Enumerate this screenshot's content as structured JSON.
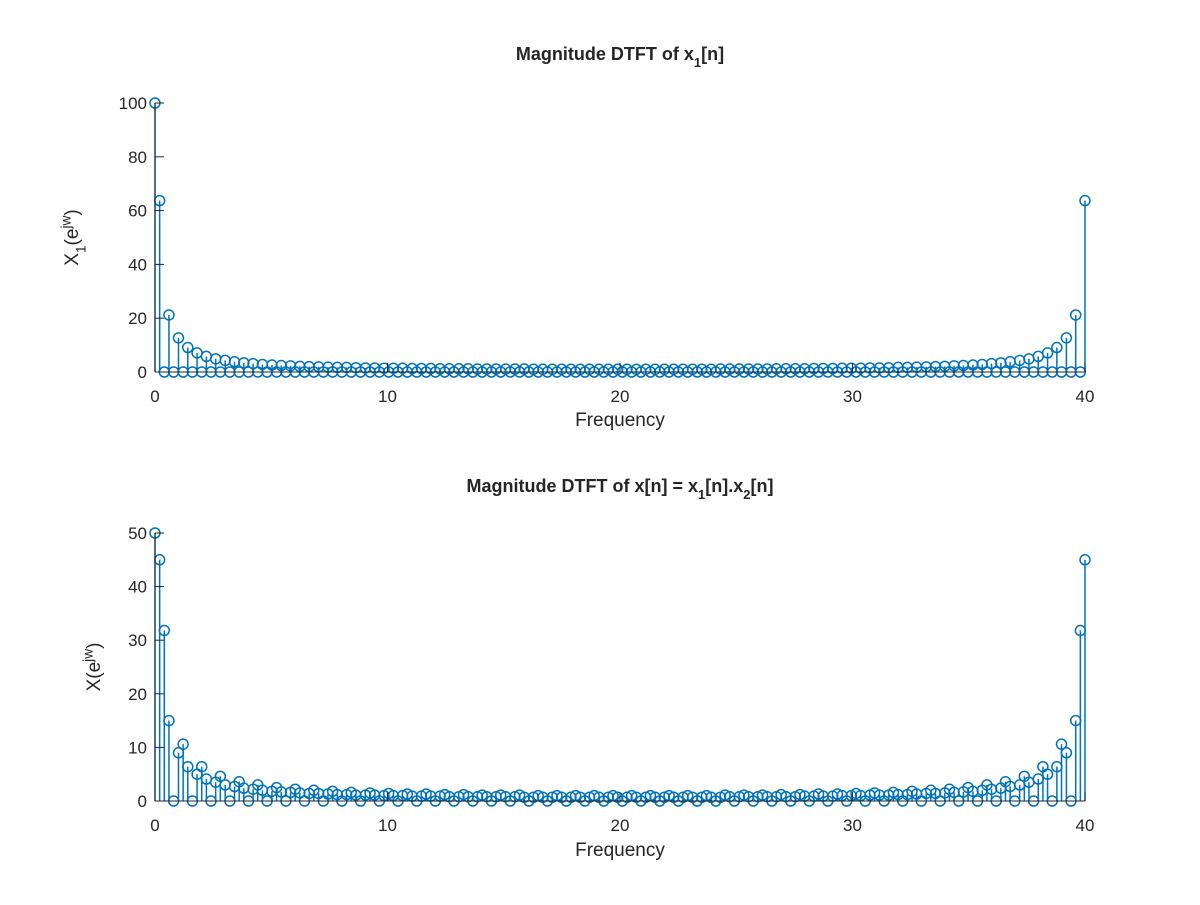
{
  "chart_data": [
    {
      "type": "stem",
      "title": "Magnitude DTFT of x_1[n]",
      "x_label": "Frequency",
      "y_label": "X_1(e^{jw})",
      "color": "#0072bd",
      "grid": false,
      "xlim": [
        0,
        40
      ],
      "xticks": [
        0,
        10,
        20,
        30,
        40
      ],
      "ylim": [
        0,
        100
      ],
      "yticks": [
        0,
        20,
        40,
        60,
        80,
        100
      ],
      "x": [
        0,
        0.2,
        0.4,
        0.6,
        0.8,
        1.01,
        1.21,
        1.41,
        1.61,
        1.81,
        2.01,
        2.21,
        2.41,
        2.61,
        2.81,
        3.02,
        3.22,
        3.42,
        3.62,
        3.82,
        4.02,
        4.22,
        4.42,
        4.62,
        4.82,
        5.03,
        5.23,
        5.43,
        5.63,
        5.83,
        6.03,
        6.23,
        6.43,
        6.63,
        6.83,
        7.04,
        7.24,
        7.44,
        7.64,
        7.84,
        8.04,
        8.24,
        8.44,
        8.64,
        8.84,
        9.05,
        9.25,
        9.45,
        9.65,
        9.85,
        10.05,
        10.25,
        10.45,
        10.65,
        10.85,
        11.06,
        11.26,
        11.46,
        11.66,
        11.86,
        12.06,
        12.26,
        12.46,
        12.66,
        12.86,
        13.07,
        13.27,
        13.47,
        13.67,
        13.87,
        14.07,
        14.27,
        14.47,
        14.67,
        14.87,
        15.08,
        15.28,
        15.48,
        15.68,
        15.88,
        16.08,
        16.28,
        16.48,
        16.68,
        16.88,
        17.09,
        17.29,
        17.49,
        17.69,
        17.89,
        18.09,
        18.29,
        18.49,
        18.69,
        18.89,
        19.1,
        19.3,
        19.5,
        19.7,
        19.9,
        20.1,
        20.3,
        20.5,
        20.7,
        20.9,
        21.11,
        21.31,
        21.51,
        21.71,
        21.91,
        22.11,
        22.31,
        22.51,
        22.71,
        22.91,
        23.12,
        23.32,
        23.52,
        23.72,
        23.92,
        24.12,
        24.32,
        24.52,
        24.72,
        24.92,
        25.13,
        25.33,
        25.53,
        25.73,
        25.93,
        26.13,
        26.33,
        26.53,
        26.73,
        26.93,
        27.14,
        27.34,
        27.54,
        27.74,
        27.94,
        28.14,
        28.34,
        28.54,
        28.74,
        28.94,
        29.15,
        29.35,
        29.55,
        29.75,
        29.95,
        30.15,
        30.35,
        30.55,
        30.75,
        30.95,
        31.16,
        31.36,
        31.56,
        31.76,
        31.96,
        32.16,
        32.36,
        32.56,
        32.76,
        32.96,
        33.17,
        33.37,
        33.57,
        33.77,
        33.97,
        34.17,
        34.37,
        34.57,
        34.77,
        34.97,
        35.18,
        35.38,
        35.58,
        35.78,
        35.98,
        36.18,
        36.38,
        36.58,
        36.78,
        36.98,
        37.19,
        37.39,
        37.59,
        37.79,
        37.99,
        38.19,
        38.39,
        38.59,
        38.79,
        38.99,
        39.2,
        39.4,
        39.6,
        39.8,
        40
      ],
      "values": [
        100,
        63.7,
        0,
        21.2,
        0,
        12.7,
        0,
        9.1,
        0,
        7.1,
        0,
        5.8,
        0,
        4.9,
        0,
        4.3,
        0,
        3.8,
        0,
        3.4,
        0,
        3.1,
        0,
        2.8,
        0,
        2.6,
        0,
        2.4,
        0,
        2.3,
        0,
        2.1,
        0,
        2,
        0,
        1.9,
        0,
        1.8,
        0,
        1.7,
        0,
        1.7,
        0,
        1.6,
        0,
        1.5,
        0,
        1.5,
        0,
        1.4,
        0,
        1.4,
        0,
        1.4,
        0,
        1.3,
        0,
        1.3,
        0,
        1.3,
        0,
        1.2,
        0,
        1.2,
        0,
        1.2,
        0,
        1.2,
        0,
        1.1,
        0,
        1.1,
        0,
        1.1,
        0,
        1.1,
        0,
        1.1,
        0,
        1.1,
        0,
        1,
        0,
        1,
        0,
        1,
        0,
        1,
        0,
        1,
        0,
        1,
        0,
        1,
        0,
        1,
        0,
        1,
        0,
        1,
        0,
        1,
        0,
        1,
        0,
        1,
        0,
        1,
        0,
        1,
        0,
        1,
        0,
        1,
        0,
        1,
        0,
        1,
        0,
        1,
        0,
        1.1,
        0,
        1.1,
        0,
        1.1,
        0,
        1.1,
        0,
        1.1,
        0,
        1.1,
        0,
        1.2,
        0,
        1.2,
        0,
        1.2,
        0,
        1.2,
        0,
        1.3,
        0,
        1.3,
        0,
        1.3,
        0,
        1.4,
        0,
        1.4,
        0,
        1.4,
        0,
        1.5,
        0,
        1.5,
        0,
        1.6,
        0,
        1.7,
        0,
        1.7,
        0,
        1.8,
        0,
        1.9,
        0,
        2,
        0,
        2.1,
        0,
        2.3,
        0,
        2.4,
        0,
        2.6,
        0,
        2.8,
        0,
        3.1,
        0,
        3.4,
        0,
        3.8,
        0,
        4.3,
        0,
        4.9,
        0,
        5.8,
        0,
        7.1,
        0,
        9.1,
        0,
        12.7,
        0,
        21.2,
        0,
        63.7
      ]
    },
    {
      "type": "stem",
      "title": "Magnitude DTFT of x[n] = x_1[n].x_2[n]",
      "x_label": "Frequency",
      "y_label": "X(e^{jw})",
      "color": "#0072bd",
      "grid": false,
      "xlim": [
        0,
        40
      ],
      "xticks": [
        0,
        10,
        20,
        30,
        40
      ],
      "ylim": [
        0,
        50
      ],
      "yticks": [
        0,
        10,
        20,
        30,
        40,
        50
      ],
      "x": [
        0,
        0.2,
        0.4,
        0.6,
        0.8,
        1.01,
        1.21,
        1.41,
        1.61,
        1.81,
        2.01,
        2.21,
        2.41,
        2.61,
        2.81,
        3.02,
        3.22,
        3.42,
        3.62,
        3.82,
        4.02,
        4.22,
        4.42,
        4.62,
        4.82,
        5.03,
        5.23,
        5.43,
        5.63,
        5.83,
        6.03,
        6.23,
        6.43,
        6.63,
        6.83,
        7.04,
        7.24,
        7.44,
        7.64,
        7.84,
        8.04,
        8.24,
        8.44,
        8.64,
        8.84,
        9.05,
        9.25,
        9.45,
        9.65,
        9.85,
        10.05,
        10.25,
        10.45,
        10.65,
        10.85,
        11.06,
        11.26,
        11.46,
        11.66,
        11.86,
        12.06,
        12.26,
        12.46,
        12.66,
        12.86,
        13.07,
        13.27,
        13.47,
        13.67,
        13.87,
        14.07,
        14.27,
        14.47,
        14.67,
        14.87,
        15.08,
        15.28,
        15.48,
        15.68,
        15.88,
        16.08,
        16.28,
        16.48,
        16.68,
        16.88,
        17.09,
        17.29,
        17.49,
        17.69,
        17.89,
        18.09,
        18.29,
        18.49,
        18.69,
        18.89,
        19.1,
        19.3,
        19.5,
        19.7,
        19.9,
        20.1,
        20.3,
        20.5,
        20.7,
        20.9,
        21.11,
        21.31,
        21.51,
        21.71,
        21.91,
        22.11,
        22.31,
        22.51,
        22.71,
        22.91,
        23.12,
        23.32,
        23.52,
        23.72,
        23.92,
        24.12,
        24.32,
        24.52,
        24.72,
        24.92,
        25.13,
        25.33,
        25.53,
        25.73,
        25.93,
        26.13,
        26.33,
        26.53,
        26.73,
        26.93,
        27.14,
        27.34,
        27.54,
        27.74,
        27.94,
        28.14,
        28.34,
        28.54,
        28.74,
        28.94,
        29.15,
        29.35,
        29.55,
        29.75,
        29.95,
        30.15,
        30.35,
        30.55,
        30.75,
        30.95,
        31.16,
        31.36,
        31.56,
        31.76,
        31.96,
        32.16,
        32.36,
        32.56,
        32.76,
        32.96,
        33.17,
        33.37,
        33.57,
        33.77,
        33.97,
        34.17,
        34.37,
        34.57,
        34.77,
        34.97,
        35.18,
        35.38,
        35.58,
        35.78,
        35.98,
        36.18,
        36.38,
        36.58,
        36.78,
        36.98,
        37.19,
        37.39,
        37.59,
        37.79,
        37.99,
        38.19,
        38.39,
        38.59,
        38.79,
        38.99,
        39.2,
        39.4,
        39.6,
        39.8,
        40
      ],
      "values": [
        50,
        45,
        31.8,
        15,
        0,
        9,
        10.6,
        6.4,
        0,
        5,
        6.4,
        4.1,
        0,
        3.5,
        4.6,
        3,
        0,
        2.7,
        3.6,
        2.4,
        0,
        2.2,
        3,
        2,
        0,
        1.8,
        2.5,
        1.7,
        0,
        1.6,
        2.2,
        1.5,
        0,
        1.4,
        2,
        1.4,
        0,
        1.3,
        1.8,
        1.2,
        0,
        1.2,
        1.6,
        1.1,
        0,
        1.1,
        1.5,
        1.1,
        0,
        1,
        1.4,
        1,
        0,
        1,
        1.3,
        0.9,
        0,
        0.9,
        1.3,
        0.9,
        0,
        0.9,
        1.2,
        0.8,
        0,
        0.8,
        1.2,
        0.8,
        0,
        0.8,
        1.1,
        0.8,
        0,
        0.8,
        1.1,
        0.8,
        0,
        0.8,
        1.1,
        0.7,
        0,
        0.7,
        1,
        0.7,
        0,
        0.7,
        1,
        0.7,
        0,
        0.7,
        1,
        0.7,
        0,
        0.7,
        1,
        0.7,
        0,
        0.7,
        1,
        0.7,
        0,
        0.7,
        1,
        0.7,
        0,
        0.7,
        1,
        0.7,
        0,
        0.7,
        1,
        0.7,
        0,
        0.7,
        1,
        0.7,
        0,
        0.7,
        1,
        0.7,
        0,
        0.7,
        1.1,
        0.8,
        0,
        0.8,
        1.1,
        0.8,
        0,
        0.8,
        1.1,
        0.8,
        0,
        0.8,
        1.2,
        0.8,
        0,
        0.8,
        1.2,
        0.9,
        0,
        0.9,
        1.3,
        0.9,
        0,
        0.9,
        1.3,
        1,
        0,
        1,
        1.4,
        1,
        0,
        1.1,
        1.5,
        1.1,
        0,
        1.1,
        1.6,
        1.2,
        0,
        1.2,
        1.8,
        1.3,
        0,
        1.4,
        2,
        1.4,
        0,
        1.5,
        2.2,
        1.6,
        0,
        1.7,
        2.5,
        1.8,
        0,
        2,
        3,
        2.2,
        0,
        2.4,
        3.6,
        2.7,
        0,
        3,
        4.6,
        3.5,
        0,
        4.1,
        6.4,
        5,
        0,
        6.4,
        10.6,
        9,
        0,
        15,
        31.8,
        45
      ]
    }
  ]
}
